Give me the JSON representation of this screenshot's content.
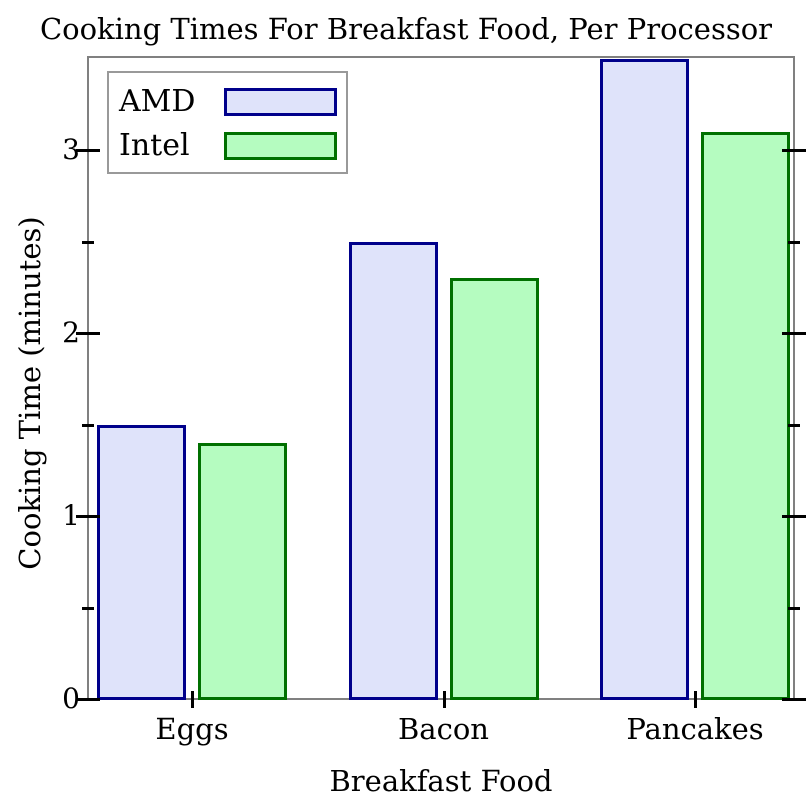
{
  "title": "Cooking Times For Breakfast Food, Per Processor",
  "chart_data": {
    "type": "bar",
    "title": "Cooking Times For Breakfast Food, Per Processor",
    "xlabel": "Breakfast Food",
    "ylabel": "Cooking Time (minutes)",
    "categories": [
      "Eggs",
      "Bacon",
      "Pancakes"
    ],
    "series": [
      {
        "name": "AMD",
        "values": [
          1.5,
          2.5,
          3.5
        ],
        "fill_color": "#dfe3fa",
        "border_color": "#00008b"
      },
      {
        "name": "Intel",
        "values": [
          1.4,
          2.3,
          3.1
        ],
        "fill_color": "#b5fcc0",
        "border_color": "#007000"
      }
    ],
    "ylim": [
      0,
      3.51
    ],
    "yticks_major": [
      0,
      1,
      2,
      3
    ],
    "yticks_minor": [
      0.5,
      1.5,
      2.5
    ],
    "grid": false,
    "legend_position": "top-left",
    "frame_color": "#808080",
    "tick_color": "#000000"
  }
}
